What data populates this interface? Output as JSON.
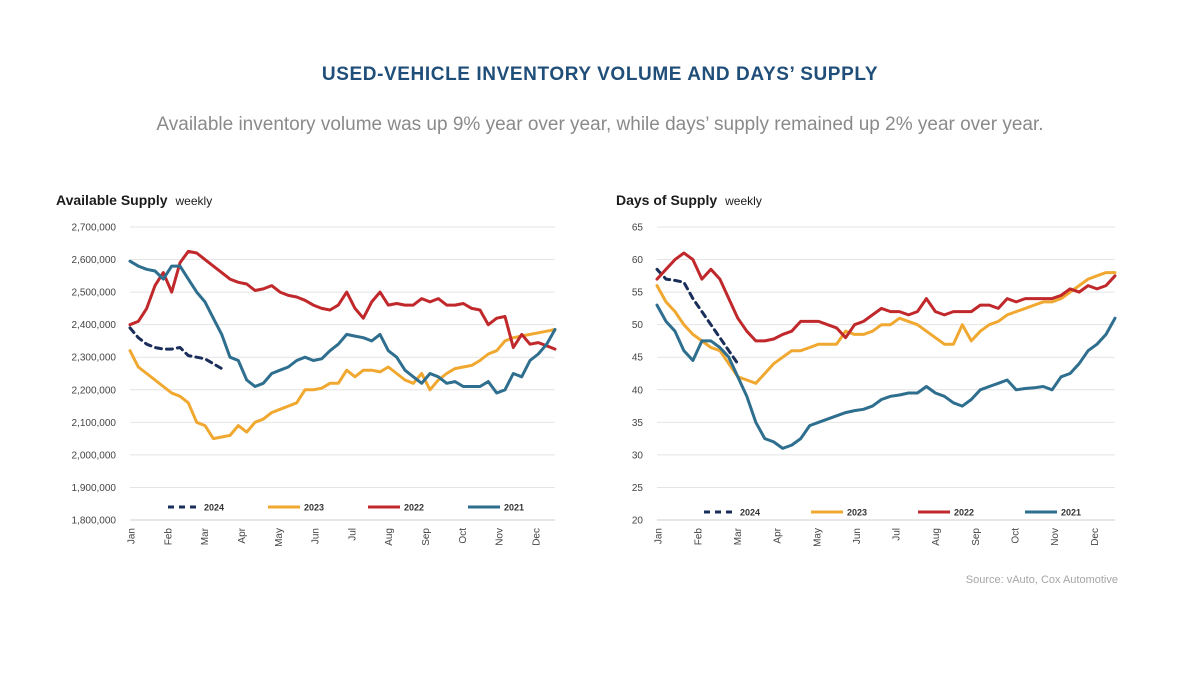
{
  "header": {
    "title": "USED-VEHICLE INVENTORY VOLUME AND DAYS’ SUPPLY",
    "subtitle": "Available inventory volume was up 9% year over year, while days’ supply remained up 2% year over year."
  },
  "source": "Source: vAuto, Cox Automotive",
  "chart_data": [
    {
      "type": "line",
      "title": "Available Supply",
      "subtitle": "weekly",
      "ylim": [
        1800000,
        2700000
      ],
      "yticks": [
        "2,700,000",
        "2,600,000",
        "2,500,000",
        "2,400,000",
        "2,300,000",
        "2,200,000",
        "2,100,000",
        "2,000,000",
        "1,900,000",
        "1,800,000"
      ],
      "ytick_values": [
        2700000,
        2600000,
        2500000,
        2400000,
        2300000,
        2200000,
        2100000,
        2000000,
        1900000,
        1800000
      ],
      "categories": [
        "Jan",
        "Feb",
        "Mar",
        "Apr",
        "May",
        "Jun",
        "Jul",
        "Aug",
        "Sep",
        "Oct",
        "Nov",
        "Dec"
      ],
      "xlim": [
        0,
        51
      ],
      "series": [
        {
          "name": "2024",
          "color": "#1a2e5a",
          "dash": true,
          "x": [
            0,
            1,
            2,
            3,
            4,
            5,
            6,
            7,
            8,
            9,
            10,
            11
          ],
          "values": [
            2390000,
            2360000,
            2340000,
            2330000,
            2325000,
            2325000,
            2330000,
            2305000,
            2300000,
            2295000,
            2280000,
            2265000
          ]
        },
        {
          "name": "2023",
          "color": "#f0a830",
          "dash": false,
          "x": [
            0,
            1,
            2,
            3,
            4,
            5,
            6,
            7,
            8,
            9,
            10,
            11,
            12,
            13,
            14,
            15,
            16,
            17,
            18,
            19,
            20,
            21,
            22,
            23,
            24,
            25,
            26,
            27,
            28,
            29,
            30,
            31,
            32,
            33,
            34,
            35,
            36,
            37,
            38,
            39,
            40,
            41,
            42,
            43,
            44,
            45,
            46,
            47,
            48,
            49,
            50,
            51
          ],
          "values": [
            2320000,
            2270000,
            2250000,
            2230000,
            2210000,
            2190000,
            2180000,
            2160000,
            2100000,
            2090000,
            2050000,
            2055000,
            2060000,
            2090000,
            2070000,
            2100000,
            2110000,
            2130000,
            2140000,
            2150000,
            2160000,
            2200000,
            2200000,
            2205000,
            2220000,
            2220000,
            2260000,
            2240000,
            2260000,
            2260000,
            2255000,
            2270000,
            2250000,
            2230000,
            2220000,
            2250000,
            2200000,
            2230000,
            2250000,
            2265000,
            2270000,
            2275000,
            2290000,
            2310000,
            2320000,
            2350000,
            2360000,
            2365000,
            2370000,
            2375000,
            2380000,
            2385000
          ]
        },
        {
          "name": "2022",
          "color": "#c0282b",
          "dash": false,
          "x": [
            0,
            1,
            2,
            3,
            4,
            5,
            6,
            7,
            8,
            9,
            10,
            11,
            12,
            13,
            14,
            15,
            16,
            17,
            18,
            19,
            20,
            21,
            22,
            23,
            24,
            25,
            26,
            27,
            28,
            29,
            30,
            31,
            32,
            33,
            34,
            35,
            36,
            37,
            38,
            39,
            40,
            41,
            42,
            43,
            44,
            45,
            46,
            47,
            48,
            49,
            50,
            51
          ],
          "values": [
            2400000,
            2410000,
            2450000,
            2520000,
            2560000,
            2500000,
            2590000,
            2625000,
            2620000,
            2600000,
            2580000,
            2560000,
            2540000,
            2530000,
            2525000,
            2505000,
            2510000,
            2520000,
            2500000,
            2490000,
            2485000,
            2475000,
            2460000,
            2450000,
            2445000,
            2460000,
            2500000,
            2450000,
            2420000,
            2470000,
            2500000,
            2460000,
            2465000,
            2460000,
            2460000,
            2480000,
            2470000,
            2480000,
            2460000,
            2460000,
            2465000,
            2450000,
            2445000,
            2400000,
            2420000,
            2425000,
            2330000,
            2370000,
            2340000,
            2345000,
            2335000,
            2325000
          ]
        },
        {
          "name": "2021",
          "color": "#2e6e8e",
          "dash": false,
          "x": [
            0,
            1,
            2,
            3,
            4,
            5,
            6,
            7,
            8,
            9,
            10,
            11,
            12,
            13,
            14,
            15,
            16,
            17,
            18,
            19,
            20,
            21,
            22,
            23,
            24,
            25,
            26,
            27,
            28,
            29,
            30,
            31,
            32,
            33,
            34,
            35,
            36,
            37,
            38,
            39,
            40,
            41,
            42,
            43,
            44,
            45,
            46,
            47,
            48,
            49,
            50,
            51
          ],
          "values": [
            2595000,
            2580000,
            2570000,
            2565000,
            2540000,
            2580000,
            2580000,
            2540000,
            2500000,
            2470000,
            2420000,
            2370000,
            2300000,
            2290000,
            2230000,
            2210000,
            2220000,
            2250000,
            2260000,
            2270000,
            2290000,
            2300000,
            2290000,
            2295000,
            2320000,
            2340000,
            2370000,
            2365000,
            2360000,
            2350000,
            2370000,
            2320000,
            2300000,
            2260000,
            2240000,
            2220000,
            2250000,
            2240000,
            2220000,
            2225000,
            2210000,
            2210000,
            2210000,
            2225000,
            2190000,
            2200000,
            2250000,
            2240000,
            2290000,
            2310000,
            2340000,
            2385000
          ]
        }
      ]
    },
    {
      "type": "line",
      "title": "Days of Supply",
      "subtitle": "weekly",
      "ylim": [
        20,
        65
      ],
      "yticks": [
        "65",
        "60",
        "55",
        "50",
        "45",
        "40",
        "35",
        "30",
        "25",
        "20"
      ],
      "ytick_values": [
        65,
        60,
        55,
        50,
        45,
        40,
        35,
        30,
        25,
        20
      ],
      "categories": [
        "Jan",
        "Feb",
        "Mar",
        "Apr",
        "May",
        "Jun",
        "Jul",
        "Aug",
        "Sep",
        "Oct",
        "Nov",
        "Dec"
      ],
      "xlim": [
        0,
        51
      ],
      "series": [
        {
          "name": "2024",
          "color": "#1a2e5a",
          "dash": true,
          "x": [
            0,
            1,
            2,
            3,
            4,
            5,
            6,
            7,
            8,
            9
          ],
          "values": [
            58.5,
            57,
            56.8,
            56.5,
            54,
            52,
            50,
            48,
            46,
            44
          ]
        },
        {
          "name": "2023",
          "color": "#f0a830",
          "dash": false,
          "x": [
            0,
            1,
            2,
            3,
            4,
            5,
            6,
            7,
            8,
            9,
            10,
            11,
            12,
            13,
            14,
            15,
            16,
            17,
            18,
            19,
            20,
            21,
            22,
            23,
            24,
            25,
            26,
            27,
            28,
            29,
            30,
            31,
            32,
            33,
            34,
            35,
            36,
            37,
            38,
            39,
            40,
            41,
            42,
            43,
            44,
            45,
            46,
            47,
            48,
            49,
            50,
            51
          ],
          "values": [
            56,
            53.5,
            52,
            50,
            48.5,
            47.5,
            46.5,
            46,
            44,
            42,
            41.5,
            41,
            42.5,
            44,
            45,
            46,
            46,
            46.5,
            47,
            47,
            47,
            49,
            48.5,
            48.5,
            49,
            50,
            50,
            51,
            50.5,
            50,
            49,
            48,
            47,
            47,
            50,
            47.5,
            49,
            50,
            50.5,
            51.5,
            52,
            52.5,
            53,
            53.5,
            53.5,
            54,
            55,
            56,
            57,
            57.5,
            58,
            58
          ]
        },
        {
          "name": "2022",
          "color": "#c0282b",
          "dash": false,
          "x": [
            0,
            1,
            2,
            3,
            4,
            5,
            6,
            7,
            8,
            9,
            10,
            11,
            12,
            13,
            14,
            15,
            16,
            17,
            18,
            19,
            20,
            21,
            22,
            23,
            24,
            25,
            26,
            27,
            28,
            29,
            30,
            31,
            32,
            33,
            34,
            35,
            36,
            37,
            38,
            39,
            40,
            41,
            42,
            43,
            44,
            45,
            46,
            47,
            48,
            49,
            50,
            51
          ],
          "values": [
            57,
            58.5,
            60,
            61,
            60,
            57,
            58.5,
            57,
            54,
            51,
            49,
            47.5,
            47.5,
            47.8,
            48.5,
            49,
            50.5,
            50.5,
            50.5,
            50,
            49.5,
            48,
            50,
            50.5,
            51.5,
            52.5,
            52,
            52,
            51.5,
            52,
            54,
            52,
            51.5,
            52,
            52,
            52,
            53,
            53,
            52.5,
            54,
            53.5,
            54,
            54,
            54,
            54,
            54.5,
            55.5,
            55,
            56,
            55.5,
            56,
            57.5
          ]
        },
        {
          "name": "2021",
          "color": "#2e6e8e",
          "dash": false,
          "x": [
            0,
            1,
            2,
            3,
            4,
            5,
            6,
            7,
            8,
            9,
            10,
            11,
            12,
            13,
            14,
            15,
            16,
            17,
            18,
            19,
            20,
            21,
            22,
            23,
            24,
            25,
            26,
            27,
            28,
            29,
            30,
            31,
            32,
            33,
            34,
            35,
            36,
            37,
            38,
            39,
            40,
            41,
            42,
            43,
            44,
            45,
            46,
            47,
            48,
            49,
            50,
            51
          ],
          "values": [
            53,
            50.5,
            49,
            46,
            44.5,
            47.5,
            47.5,
            46.5,
            45,
            42,
            39,
            35,
            32.5,
            32,
            31,
            31.5,
            32.5,
            34.5,
            35,
            35.5,
            36,
            36.5,
            36.8,
            37,
            37.5,
            38.5,
            39,
            39.2,
            39.5,
            39.5,
            40.5,
            39.5,
            39,
            38,
            37.5,
            38.5,
            40,
            40.5,
            41,
            41.5,
            40,
            40.2,
            40.3,
            40.5,
            40,
            42,
            42.5,
            44,
            46,
            47,
            48.5,
            51
          ]
        }
      ]
    }
  ]
}
